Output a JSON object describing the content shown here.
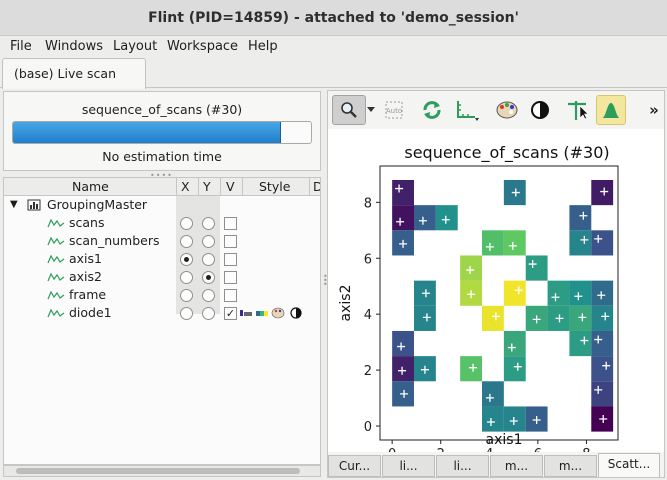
{
  "window": {
    "title": "Flint (PID=14859) - attached to 'demo_session'"
  },
  "menu": {
    "items": [
      "File",
      "Windows",
      "Layout",
      "Workspace",
      "Help"
    ]
  },
  "tabs": {
    "live_scan": "(base) Live scan"
  },
  "progress": {
    "title": "sequence_of_scans (#30)",
    "fraction": 0.9,
    "estimation": "No estimation time"
  },
  "tree": {
    "headers": {
      "name": "Name",
      "x": "X",
      "y": "Y",
      "v": "V",
      "style": "Style",
      "d": "D"
    },
    "root": "GroupingMaster",
    "items": [
      {
        "label": "scans",
        "x": false,
        "y": false,
        "v": false
      },
      {
        "label": "scan_numbers",
        "x": false,
        "y": false,
        "v": false
      },
      {
        "label": "axis1",
        "x": true,
        "y": false,
        "v": false
      },
      {
        "label": "axis2",
        "x": false,
        "y": true,
        "v": false
      },
      {
        "label": "frame",
        "x": false,
        "y": false,
        "v": false
      },
      {
        "label": "diode1",
        "x": false,
        "y": false,
        "v": true
      }
    ]
  },
  "toolbar": {
    "icons": [
      "zoom-icon",
      "dropdown-arrow-icon",
      "auto-scale-icon",
      "refresh-icon",
      "axes-icon",
      "palette-icon",
      "contrast-icon",
      "crosshair-icon",
      "histogram-icon",
      "more-icon"
    ],
    "auto_label": "Auto",
    "more_label": "»"
  },
  "colors": {
    "progress": "#2b8ad6",
    "accent_green": "#2e9c5a",
    "palette_low": "#440154",
    "palette_high": "#fde725"
  },
  "bottom_tabs": [
    "Cur...",
    "li...",
    "li...",
    "m...",
    "m...",
    "Scatt..."
  ],
  "chart_data": {
    "type": "heatmap",
    "title": "sequence_of_scans (#30)",
    "xlabel": "axis1",
    "ylabel": "axis2",
    "xlim": [
      -0.5,
      9.3
    ],
    "ylim": [
      -0.5,
      9.3
    ],
    "xticks": [
      0,
      2,
      4,
      6,
      8
    ],
    "yticks": [
      0,
      2,
      4,
      6,
      8
    ],
    "cell_size": 0.9,
    "grid": false,
    "colormap": "viridis",
    "cells": [
      {
        "x": 0.45,
        "y": 8.35,
        "v": 0.1
      },
      {
        "x": 0.45,
        "y": 7.45,
        "v": 0.05
      },
      {
        "x": 1.35,
        "y": 7.45,
        "v": 0.3
      },
      {
        "x": 2.25,
        "y": 7.45,
        "v": 0.5
      },
      {
        "x": 0.45,
        "y": 6.55,
        "v": 0.3
      },
      {
        "x": 5.05,
        "y": 8.35,
        "v": 0.4
      },
      {
        "x": 8.65,
        "y": 8.35,
        "v": 0.08
      },
      {
        "x": 7.75,
        "y": 7.45,
        "v": 0.3
      },
      {
        "x": 7.75,
        "y": 6.55,
        "v": 0.45
      },
      {
        "x": 8.65,
        "y": 6.55,
        "v": 0.25
      },
      {
        "x": 4.15,
        "y": 6.55,
        "v": 0.7
      },
      {
        "x": 5.05,
        "y": 6.55,
        "v": 0.75
      },
      {
        "x": 3.25,
        "y": 5.65,
        "v": 0.85
      },
      {
        "x": 3.25,
        "y": 4.75,
        "v": 0.88
      },
      {
        "x": 1.35,
        "y": 4.75,
        "v": 0.45
      },
      {
        "x": 1.35,
        "y": 3.85,
        "v": 0.45
      },
      {
        "x": 4.15,
        "y": 3.85,
        "v": 0.97
      },
      {
        "x": 5.05,
        "y": 4.75,
        "v": 0.98
      },
      {
        "x": 5.95,
        "y": 5.65,
        "v": 0.55
      },
      {
        "x": 6.85,
        "y": 4.75,
        "v": 0.55
      },
      {
        "x": 7.75,
        "y": 4.75,
        "v": 0.5
      },
      {
        "x": 8.65,
        "y": 4.75,
        "v": 0.35
      },
      {
        "x": 5.95,
        "y": 3.85,
        "v": 0.6
      },
      {
        "x": 6.85,
        "y": 3.85,
        "v": 0.55
      },
      {
        "x": 7.75,
        "y": 3.85,
        "v": 0.6
      },
      {
        "x": 8.65,
        "y": 3.85,
        "v": 0.45
      },
      {
        "x": 7.75,
        "y": 2.95,
        "v": 0.55
      },
      {
        "x": 8.65,
        "y": 2.95,
        "v": 0.3
      },
      {
        "x": 5.05,
        "y": 2.95,
        "v": 0.6
      },
      {
        "x": 0.45,
        "y": 2.95,
        "v": 0.25
      },
      {
        "x": 0.45,
        "y": 2.05,
        "v": 0.1
      },
      {
        "x": 1.35,
        "y": 2.05,
        "v": 0.45
      },
      {
        "x": 0.45,
        "y": 1.15,
        "v": 0.3
      },
      {
        "x": 3.25,
        "y": 2.05,
        "v": 0.72
      },
      {
        "x": 5.05,
        "y": 2.05,
        "v": 0.55
      },
      {
        "x": 8.65,
        "y": 2.05,
        "v": 0.25
      },
      {
        "x": 8.65,
        "y": 1.15,
        "v": 0.2
      },
      {
        "x": 4.15,
        "y": 1.15,
        "v": 0.4
      },
      {
        "x": 4.15,
        "y": 0.25,
        "v": 0.45
      },
      {
        "x": 5.05,
        "y": 0.25,
        "v": 0.45
      },
      {
        "x": 5.95,
        "y": 0.25,
        "v": 0.3
      },
      {
        "x": 8.65,
        "y": 0.25,
        "v": 0.0
      }
    ]
  }
}
